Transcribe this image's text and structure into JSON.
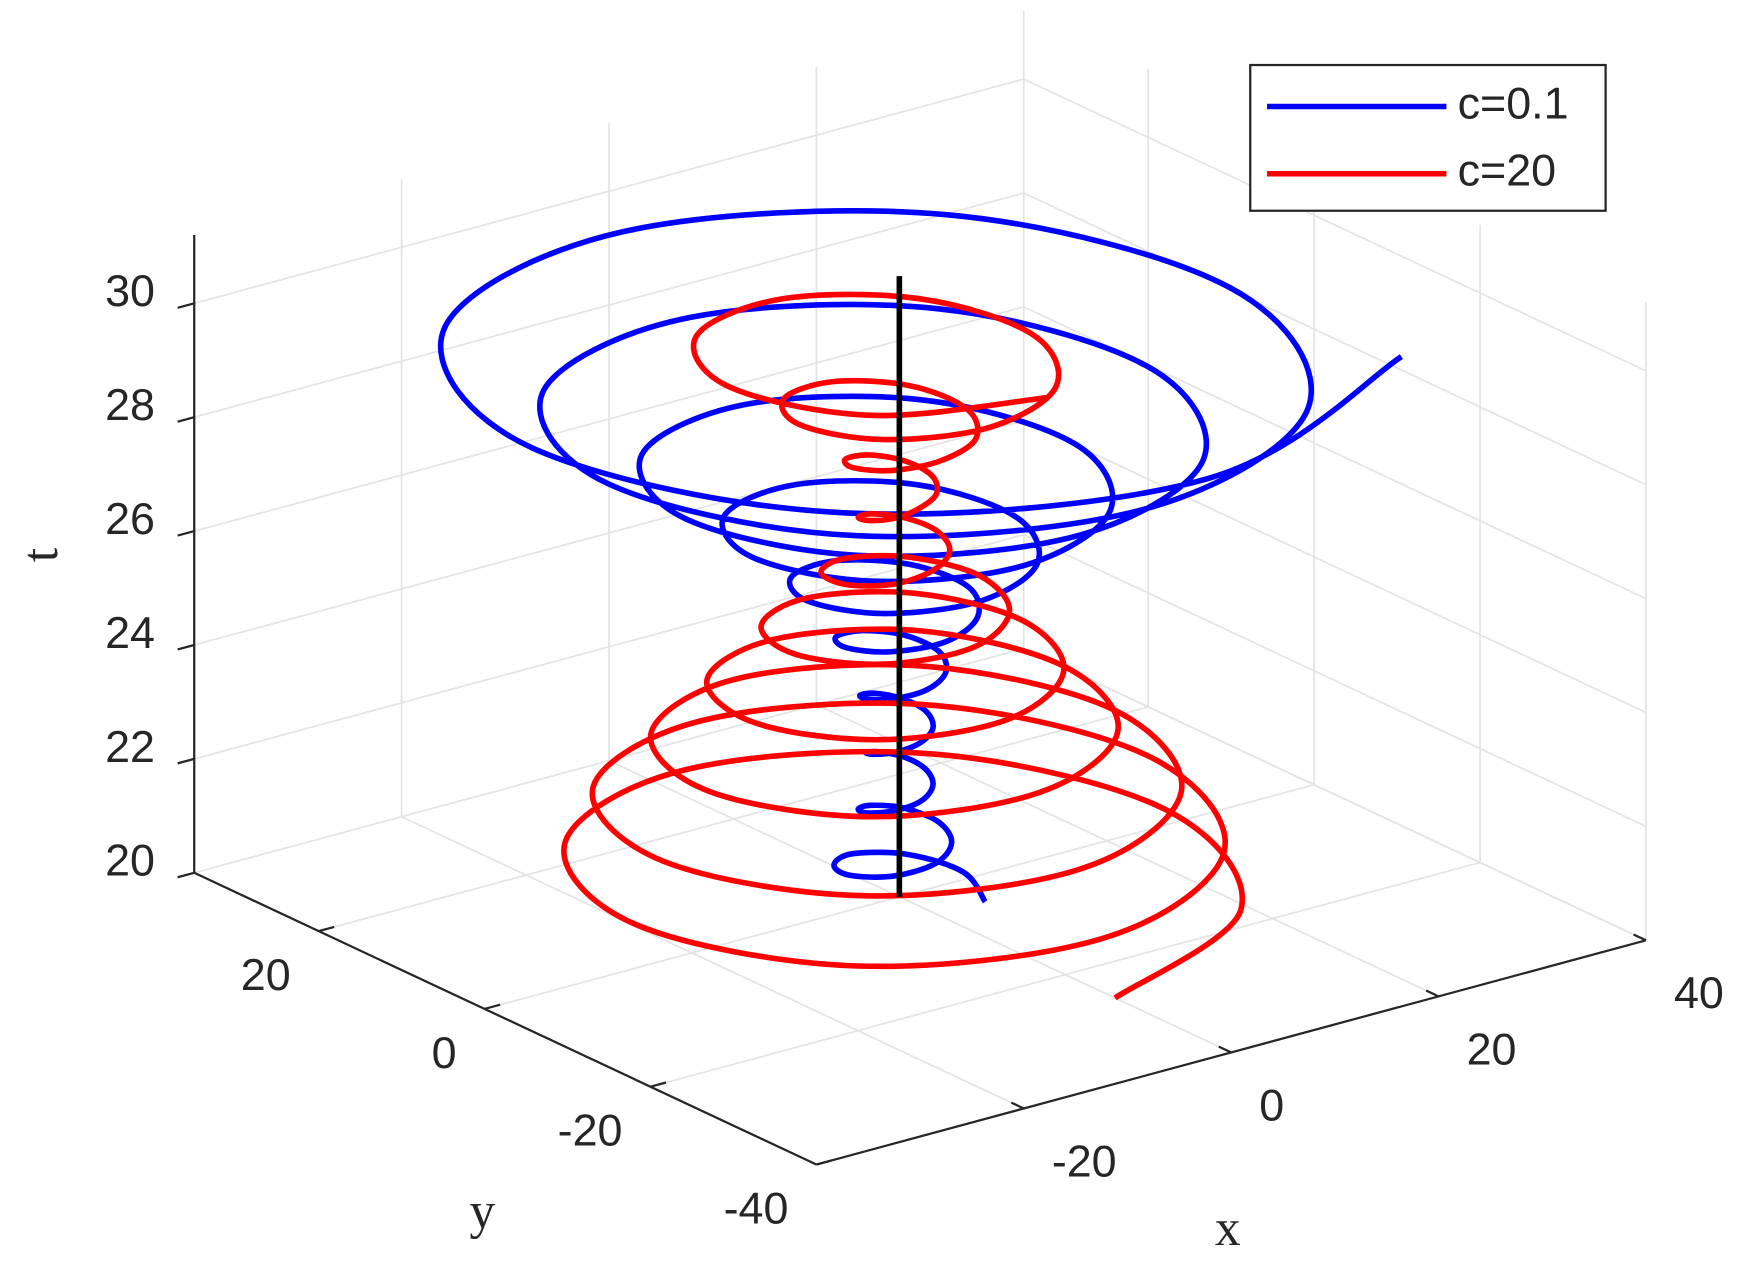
{
  "chart_data": {
    "type": "line3d",
    "xlabel": "x",
    "ylabel": "y",
    "zlabel": "t",
    "xlim": [
      -40,
      40
    ],
    "xticks": [
      -20,
      0,
      20,
      40
    ],
    "ylim": [
      -40,
      35
    ],
    "yticks": [
      -40,
      -20,
      0,
      20
    ],
    "zlim": [
      20,
      31.2
    ],
    "zticks": [
      20,
      22,
      24,
      26,
      28,
      30
    ],
    "grid": true,
    "legend": "northeast",
    "series": [
      {
        "name": "c=0.1",
        "color": "#0000ff",
        "x": [
          4.6,
          6.2,
          4.2,
          0,
          -3.5,
          -4.9,
          -3.3,
          0,
          2.8,
          3.8,
          2.6,
          0,
          -2.2,
          -3.1,
          -2.0,
          0,
          1.8,
          2.5,
          1.8,
          0,
          -1.8,
          -2.5,
          -1.8,
          0,
          1.8,
          2.6,
          1.9,
          0,
          -2.1,
          -3.1,
          -2.3,
          0,
          2.5,
          3.8,
          2.9,
          0,
          -3.4,
          -5.1,
          -3.8,
          0,
          4.2,
          6.6,
          5.0,
          0,
          -5.8,
          -8.8,
          -6.6,
          0,
          7.4,
          11.2,
          8.4,
          0,
          -9.4,
          -13.9,
          -10.3,
          0,
          11.3,
          16.9,
          12.5,
          0,
          -13.8,
          -20.4,
          -15.0,
          0,
          16.3,
          24,
          17.7,
          0,
          -19.1,
          -28,
          -20.5,
          0,
          21.9,
          31.9,
          23.2,
          0,
          -24.4,
          -35.4,
          -25.6,
          0,
          26.9
        ],
        "y": [
          -4.6,
          0,
          4.2,
          5.6,
          3.5,
          0,
          -3.3,
          -4.3,
          -2.8,
          0,
          2.6,
          3.4,
          2.2,
          0,
          -2.0,
          -2.7,
          -1.8,
          0,
          1.8,
          2.5,
          1.8,
          0,
          -1.8,
          -2.5,
          -1.8,
          0,
          1.9,
          2.9,
          2.1,
          0,
          -2.3,
          -3.4,
          -2.5,
          0,
          2.9,
          4.4,
          3.4,
          0,
          -3.8,
          -5.7,
          -4.2,
          0,
          5.0,
          7.7,
          5.8,
          0,
          -6.6,
          -9.9,
          -7.4,
          0,
          8.4,
          12.6,
          9.4,
          0,
          -10.3,
          -15.3,
          -11.3,
          0,
          12.5,
          18.6,
          13.8,
          0,
          -15.0,
          -22.1,
          -16.3,
          0,
          17.7,
          26,
          19.1,
          0,
          -20.5,
          -30,
          -21.9,
          0,
          23.2,
          33.6,
          24.4,
          0,
          -25.6,
          -37.1,
          -26.9
        ],
        "t": [
          20,
          20.125,
          20.25,
          20.375,
          20.5,
          20.625,
          20.75,
          20.875,
          21,
          21.125,
          21.25,
          21.375,
          21.5,
          21.625,
          21.75,
          21.875,
          22,
          22.125,
          22.25,
          22.375,
          22.5,
          22.625,
          22.75,
          22.875,
          23,
          23.125,
          23.25,
          23.375,
          23.5,
          23.625,
          23.75,
          23.875,
          24,
          24.125,
          24.25,
          24.375,
          24.5,
          24.625,
          24.75,
          24.875,
          25,
          25.125,
          25.25,
          25.375,
          25.5,
          25.625,
          25.75,
          25.875,
          26,
          26.125,
          26.25,
          26.375,
          26.5,
          26.625,
          26.75,
          26.875,
          27,
          27.125,
          27.25,
          27.375,
          27.5,
          27.625,
          27.75,
          27.875,
          28,
          28.125,
          28.25,
          28.375,
          28.5,
          28.625,
          28.75,
          28.875,
          29,
          29.125,
          29.25,
          29.375,
          29.5,
          29.625,
          29.75,
          29.875,
          30
        ]
      },
      {
        "name": "c=20",
        "color": "#ff0000",
        "x": [
          0,
          18.3,
          25.8,
          18.1,
          0,
          -17.9,
          -25.3,
          -17.8,
          0,
          17.4,
          24.3,
          16.9,
          0,
          -16.4,
          -22.8,
          -15.8,
          0,
          15.1,
          20.8,
          14.2,
          0,
          -13.3,
          -18.3,
          -12.5,
          0,
          11.7,
          16,
          11,
          0,
          -10.3,
          -14,
          -9.5,
          0,
          8.8,
          12,
          8.1,
          0,
          -7.4,
          -10,
          -6.7,
          0,
          5.9,
          7.8,
          5.0,
          0,
          -4.2,
          -5.3,
          -3.3,
          0,
          2.7,
          3.6,
          2.4,
          0,
          -2.2,
          -2.9,
          -1.9,
          0,
          2.0,
          3.1,
          2.4,
          0,
          -2.9,
          -4.4,
          -3.3,
          0,
          4.1,
          6.5,
          5.1,
          0,
          -6.2,
          -9.5,
          -7.2,
          0,
          8.4,
          12.8,
          9.6,
          0,
          -10.9,
          -16.3,
          -12.1,
          0
        ],
        "y": [
          -26,
          -18.3,
          0,
          18.1,
          25.5,
          17.9,
          0,
          -17.8,
          -25,
          -17.4,
          0,
          16.9,
          23.5,
          16.4,
          0,
          -15.8,
          -22,
          -15.1,
          0,
          14.2,
          19.5,
          13.3,
          0,
          -12.5,
          -17,
          -11.7,
          0,
          11,
          15,
          10.3,
          0,
          -9.5,
          -13,
          -8.8,
          0,
          8.1,
          11,
          7.4,
          0,
          -6.7,
          -9,
          -5.9,
          0,
          5.0,
          6.5,
          4.2,
          0,
          -3.3,
          -4,
          -2.7,
          0,
          2.4,
          3.3,
          2.2,
          0,
          -1.9,
          -2.5,
          -2.0,
          0,
          2.4,
          3.8,
          2.9,
          0,
          -3.3,
          -5,
          -4.1,
          0,
          5.1,
          8,
          6.2,
          0,
          -7.2,
          -11,
          -8.4,
          0,
          9.6,
          14.5,
          10.9,
          0,
          -12.1,
          -18
        ],
        "t": [
          20,
          20.125,
          20.25,
          20.375,
          20.5,
          20.625,
          20.75,
          20.875,
          21,
          21.125,
          21.25,
          21.375,
          21.5,
          21.625,
          21.75,
          21.875,
          22,
          22.125,
          22.25,
          22.375,
          22.5,
          22.625,
          22.75,
          22.875,
          23,
          23.125,
          23.25,
          23.375,
          23.5,
          23.625,
          23.75,
          23.875,
          24,
          24.125,
          24.25,
          24.375,
          24.5,
          24.625,
          24.75,
          24.875,
          25,
          25.125,
          25.25,
          25.375,
          25.5,
          25.625,
          25.75,
          25.875,
          26,
          26.125,
          26.25,
          26.375,
          26.5,
          26.625,
          26.75,
          26.875,
          27,
          27.125,
          27.25,
          27.375,
          27.5,
          27.625,
          27.75,
          27.875,
          28,
          28.125,
          28.25,
          28.375,
          28.5,
          28.625,
          28.75,
          28.875,
          29,
          29.125,
          29.25,
          29.375,
          29.5,
          29.625,
          29.75,
          29.875,
          30
        ]
      },
      {
        "color": "#000000",
        "x": [
          0,
          0
        ],
        "y": [
          0,
          0
        ],
        "t": [
          20,
          30.9
        ]
      }
    ]
  }
}
